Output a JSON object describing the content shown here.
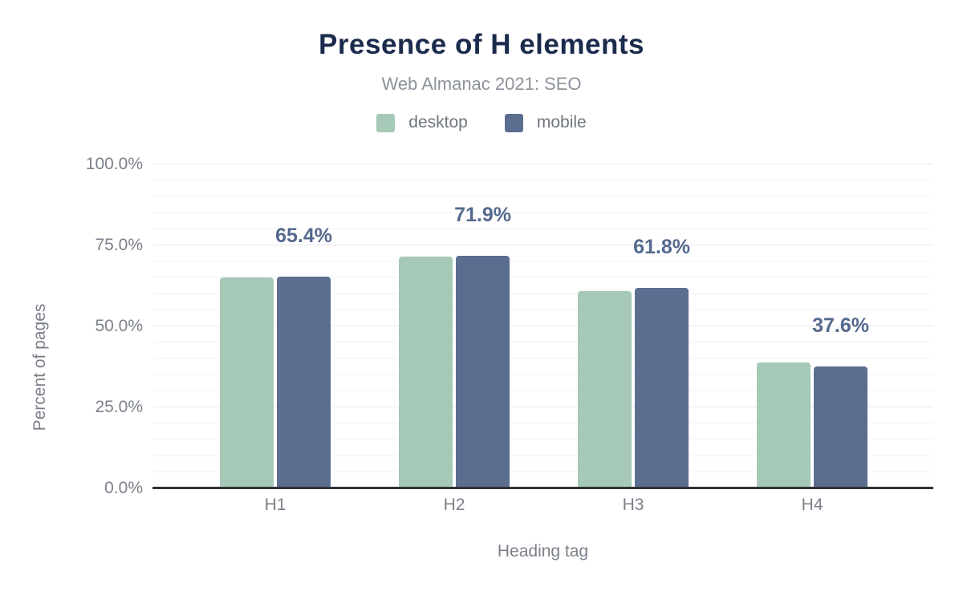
{
  "header": {
    "title": "Presence of H elements",
    "subtitle": "Web Almanac 2021: SEO"
  },
  "legend": {
    "items": [
      {
        "label": "desktop",
        "color": "#a5c9b6"
      },
      {
        "label": "mobile",
        "color": "#5b6e90"
      }
    ]
  },
  "chart_data": {
    "type": "bar",
    "title": "Presence of H elements",
    "subtitle": "Web Almanac 2021: SEO",
    "categories": [
      "H1",
      "H2",
      "H3",
      "H4"
    ],
    "series": [
      {
        "name": "desktop",
        "color": "#a5c9b6",
        "values": [
          65.1,
          71.5,
          61.0,
          38.8
        ]
      },
      {
        "name": "mobile",
        "color": "#5b6e90",
        "values": [
          65.4,
          71.9,
          61.8,
          37.6
        ]
      }
    ],
    "bar_labels": {
      "series": "mobile",
      "text": [
        "65.4%",
        "71.9%",
        "61.8%",
        "37.6%"
      ],
      "color": "#55698e"
    },
    "xlabel": "Heading tag",
    "ylabel": "Percent of pages",
    "ylim": [
      0,
      100
    ],
    "yticks": [
      {
        "value": 0,
        "label": "0.0%"
      },
      {
        "value": 25,
        "label": "25.0%"
      },
      {
        "value": 50,
        "label": "50.0%"
      },
      {
        "value": 75,
        "label": "75.0%"
      },
      {
        "value": 100,
        "label": "100.0%"
      }
    ],
    "minor_grid_step": 5,
    "grid": true,
    "legend_position": "top"
  },
  "colors": {
    "background": "#ffffff",
    "title": "#1b2b4c",
    "subtitle": "#8c919b",
    "axis_text": "#7b808a",
    "legend_text": "#6f747e",
    "axis_line": "#303236",
    "grid_minor": "#f2f3f5",
    "grid_major": "#e7e9ec"
  }
}
